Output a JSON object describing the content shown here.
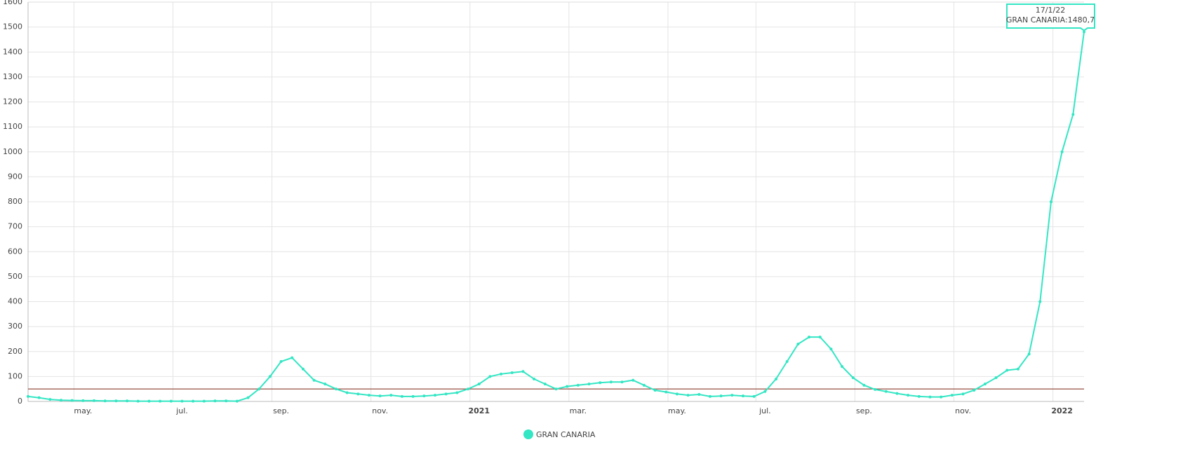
{
  "chart_data": {
    "type": "line",
    "categories": [
      null,
      null,
      null,
      null,
      null,
      "may.",
      null,
      null,
      null,
      null,
      null,
      null,
      null,
      null,
      "jul.",
      null,
      null,
      null,
      null,
      null,
      null,
      null,
      null,
      "sep.",
      null,
      null,
      null,
      null,
      null,
      null,
      null,
      null,
      "nov.",
      null,
      null,
      null,
      null,
      null,
      null,
      null,
      null,
      "2021",
      null,
      null,
      null,
      null,
      null,
      null,
      null,
      null,
      "mar.",
      null,
      null,
      null,
      null,
      null,
      null,
      null,
      null,
      "may.",
      null,
      null,
      null,
      null,
      null,
      null,
      null,
      "jul.",
      null,
      null,
      null,
      null,
      null,
      null,
      null,
      null,
      "sep.",
      null,
      null,
      null,
      null,
      null,
      null,
      null,
      null,
      "nov.",
      null,
      null,
      null,
      null,
      null,
      null,
      null,
      null,
      "2022",
      null,
      null
    ],
    "series": [
      {
        "name": "GRAN CANARIA",
        "color": "#33e6c4",
        "values": [
          20,
          15,
          8,
          5,
          4,
          3,
          3,
          2,
          2,
          2,
          1,
          1,
          1,
          1,
          1,
          1,
          1,
          2,
          2,
          1,
          15,
          50,
          100,
          160,
          175,
          130,
          85,
          70,
          50,
          35,
          30,
          25,
          22,
          25,
          20,
          20,
          22,
          25,
          30,
          35,
          50,
          70,
          100,
          110,
          115,
          120,
          90,
          70,
          50,
          60,
          65,
          70,
          75,
          78,
          78,
          85,
          65,
          45,
          38,
          30,
          25,
          28,
          20,
          22,
          25,
          22,
          20,
          40,
          90,
          160,
          230,
          258,
          258,
          210,
          140,
          95,
          65,
          48,
          40,
          32,
          25,
          20,
          18,
          18,
          25,
          30,
          45,
          70,
          95,
          125,
          130,
          190,
          400,
          800,
          1000,
          1150,
          1480.7
        ]
      }
    ],
    "ylim": [
      0,
      1600
    ],
    "yticks": [
      0,
      100,
      200,
      300,
      400,
      500,
      600,
      700,
      800,
      900,
      1000,
      1100,
      1200,
      1300,
      1400,
      1500,
      1600
    ],
    "grid": true,
    "reference_line": {
      "value": 50,
      "color": "#8b3a2a"
    },
    "tooltip": {
      "title": "17/1/22",
      "text": "GRAN CANARIA:1480,7"
    },
    "legend": "bottom"
  }
}
